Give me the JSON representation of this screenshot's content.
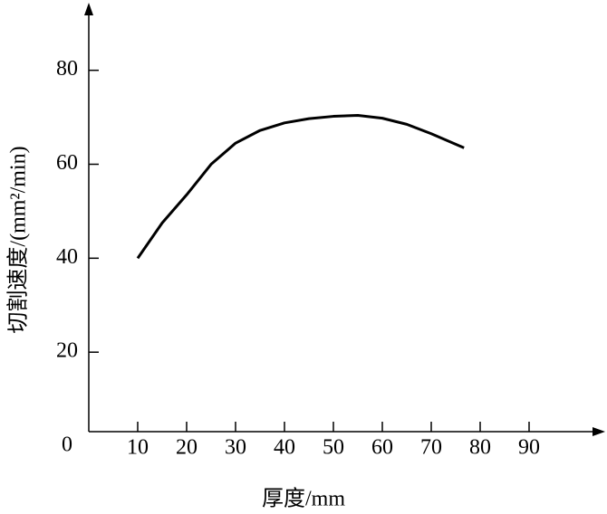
{
  "chart_data": {
    "type": "line",
    "xlabel": "厚度/mm",
    "ylabel": "切割速度/(mm²/min)",
    "x": [
      10,
      15,
      20,
      25,
      30,
      35,
      40,
      45,
      50,
      55,
      60,
      65,
      70,
      76.7
    ],
    "series": [
      {
        "color": "#000000",
        "values": [
          40,
          47.5,
          53.5,
          60,
          64.5,
          67.2,
          68.8,
          69.7,
          70.2,
          70.4,
          69.8,
          68.5,
          66.5,
          63.5
        ]
      }
    ],
    "xlim": [
      0,
      105
    ],
    "xticks": [
      10,
      20,
      30,
      40,
      50,
      60,
      70,
      80,
      90
    ],
    "ylim": [
      0,
      94
    ],
    "yticks": [
      0,
      20,
      40,
      60,
      80
    ],
    "grid": false
  }
}
